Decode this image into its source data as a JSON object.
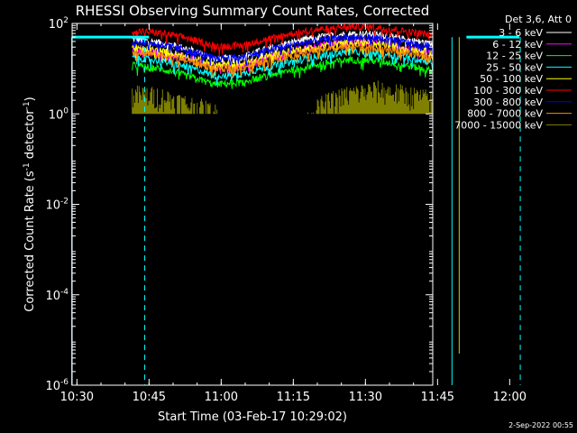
{
  "chart_data": {
    "type": "line",
    "title": "RHESSI Observing Summary Count Rates, Corrected",
    "xlabel": "Start Time (03-Feb-17 10:29:02)",
    "ylabel_main": "Corrected Count Rate (s",
    "ylabel_sup1": "-1",
    "ylabel_mid": " detector",
    "ylabel_sup2": "-1",
    "ylabel_end": ")",
    "x_unit": "minutes since 10:29:02",
    "xlim": [
      0,
      75
    ],
    "ylim": [
      1e-06,
      100
    ],
    "y_scale": "log",
    "x_ticks": [
      {
        "value": 1,
        "label": "10:30"
      },
      {
        "value": 16,
        "label": "10:45"
      },
      {
        "value": 31,
        "label": "11:00"
      },
      {
        "value": 46,
        "label": "11:15"
      },
      {
        "value": 61,
        "label": "11:30"
      },
      {
        "value": 76,
        "label": "11:45"
      },
      {
        "value": 91,
        "label": "12:00"
      }
    ],
    "y_ticks": [
      {
        "value": 100,
        "base": "10",
        "exp": "2"
      },
      {
        "value": 1,
        "base": "10",
        "exp": "0"
      },
      {
        "value": 0.01,
        "base": "10",
        "exp": "-2"
      },
      {
        "value": 0.0001,
        "base": "10",
        "exp": "-4"
      },
      {
        "value": 1e-06,
        "base": "10",
        "exp": "-6"
      }
    ],
    "legend_header": "Det 3,6, Att 0",
    "series": [
      {
        "name": "3 - 6 keV",
        "color": "#ffffff",
        "profile": [
          45,
          38,
          28,
          16,
          18,
          28,
          40,
          52,
          60,
          58,
          45,
          35,
          25
        ]
      },
      {
        "name": "6 - 12 keV",
        "color": "#ff00ff",
        "profile": [
          28,
          24,
          18,
          11,
          12,
          18,
          26,
          34,
          40,
          38,
          30,
          22,
          18
        ]
      },
      {
        "name": "12 - 25 keV",
        "color": "#00ff00",
        "profile": [
          12,
          10,
          7,
          4.5,
          5,
          7,
          10,
          13,
          16,
          15,
          12,
          9,
          7
        ]
      },
      {
        "name": "25 - 50 keV",
        "color": "#00ffff",
        "profile": [
          18,
          15,
          11,
          7,
          7.5,
          11,
          15,
          20,
          24,
          22,
          18,
          14,
          11
        ]
      },
      {
        "name": "50 - 100 keV",
        "color": "#ffff00",
        "profile": [
          30,
          25,
          19,
          12,
          13,
          19,
          26,
          33,
          38,
          36,
          29,
          23,
          18
        ]
      },
      {
        "name": "100 - 300 keV",
        "color": "#ff0000",
        "profile": [
          70,
          62,
          48,
          32,
          33,
          46,
          62,
          76,
          86,
          82,
          68,
          56,
          48
        ]
      },
      {
        "name": "300 - 800 keV",
        "color": "#0000ff",
        "profile": [
          40,
          34,
          26,
          17,
          18,
          26,
          35,
          44,
          50,
          48,
          39,
          31,
          26
        ]
      },
      {
        "name": "800 - 7000 keV",
        "color": "#ff8c00",
        "profile": [
          24,
          20,
          15,
          10,
          10.5,
          15,
          21,
          27,
          31,
          29,
          23,
          18,
          15
        ]
      },
      {
        "name": "7000 - 15000 keV",
        "color": "#808000",
        "profile": [
          2,
          1.8,
          1.2,
          0.8,
          0,
          0,
          0,
          1.2,
          2,
          2.5,
          2,
          1.5,
          1.2
        ]
      }
    ],
    "cyan_bar_level": 50,
    "cyan_bar_ranges": [
      [
        0,
        16
      ],
      [
        82,
        93
      ]
    ],
    "cyan_verticals_solid": [
      -0.1,
      79
    ],
    "cyan_verticals_dashed": [
      15.1,
      93.2
    ],
    "drop_line": {
      "x": 80.5,
      "from": 50,
      "to": 5e-06,
      "color": "#cccc00"
    },
    "annotations": [
      "2-Sep-2022 00:55"
    ]
  }
}
